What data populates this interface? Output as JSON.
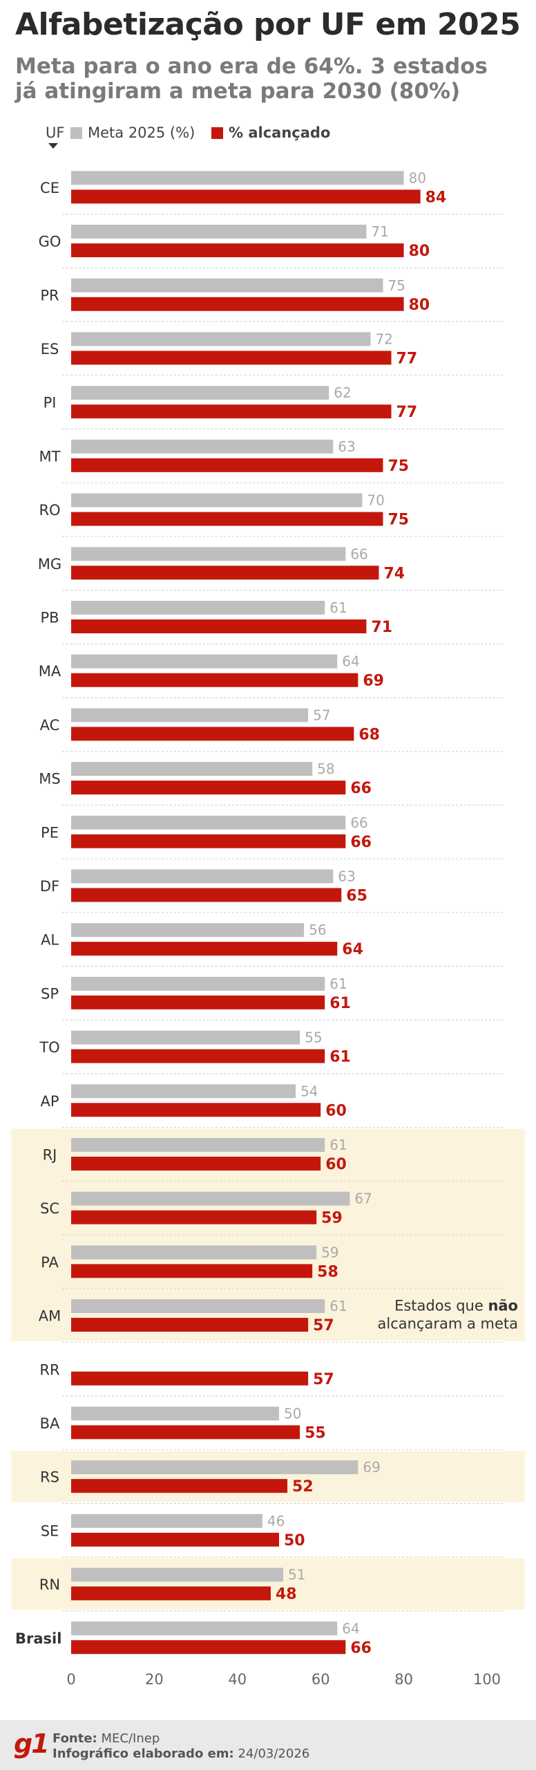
{
  "header": {
    "title": "Alfabetização por UF em 2025",
    "subtitle": "Meta para o ano era de 64%. 3 estados já atingiram a meta para 2030 (80%)"
  },
  "legend": {
    "sort_label": "UF",
    "meta_label": "Meta 2025 (%)",
    "achieved_label": "% alcançado"
  },
  "colors": {
    "meta": "#bfbfbf",
    "achieved": "#c4170c",
    "highlight": "#fbf3dc",
    "meta_text": "#a9a9a9"
  },
  "annotation": {
    "line1_pre": "Estados que ",
    "line1_bold": "não",
    "line2": "alcançaram a meta"
  },
  "chart_data": {
    "type": "bar",
    "orientation": "horizontal",
    "categories": [
      "CE",
      "GO",
      "PR",
      "ES",
      "PI",
      "MT",
      "RO",
      "MG",
      "PB",
      "MA",
      "AC",
      "MS",
      "PE",
      "DF",
      "AL",
      "SP",
      "TO",
      "AP",
      "RJ",
      "SC",
      "PA",
      "AM",
      "RR",
      "BA",
      "RS",
      "SE",
      "RN",
      "Brasil"
    ],
    "series": [
      {
        "name": "Meta 2025 (%)",
        "values": [
          80,
          71,
          75,
          72,
          62,
          63,
          70,
          66,
          61,
          64,
          57,
          58,
          66,
          63,
          56,
          61,
          55,
          54,
          61,
          67,
          59,
          61,
          null,
          50,
          69,
          46,
          51,
          64
        ]
      },
      {
        "name": "% alcançado",
        "values": [
          84,
          80,
          80,
          77,
          77,
          75,
          75,
          74,
          71,
          69,
          68,
          66,
          66,
          65,
          64,
          61,
          61,
          60,
          60,
          59,
          58,
          57,
          57,
          55,
          52,
          50,
          48,
          66
        ]
      }
    ],
    "highlighted": [
      "RJ",
      "SC",
      "PA",
      "AM",
      "RS",
      "RN"
    ],
    "xlim": [
      0,
      100
    ],
    "xticks": [
      0,
      20,
      40,
      60,
      80,
      100
    ]
  },
  "footer": {
    "logo": "g1",
    "source_label": "Fonte:",
    "source_value": "MEC/Inep",
    "made_label": "Infográfico elaborado em:",
    "made_value": "24/03/2026"
  }
}
